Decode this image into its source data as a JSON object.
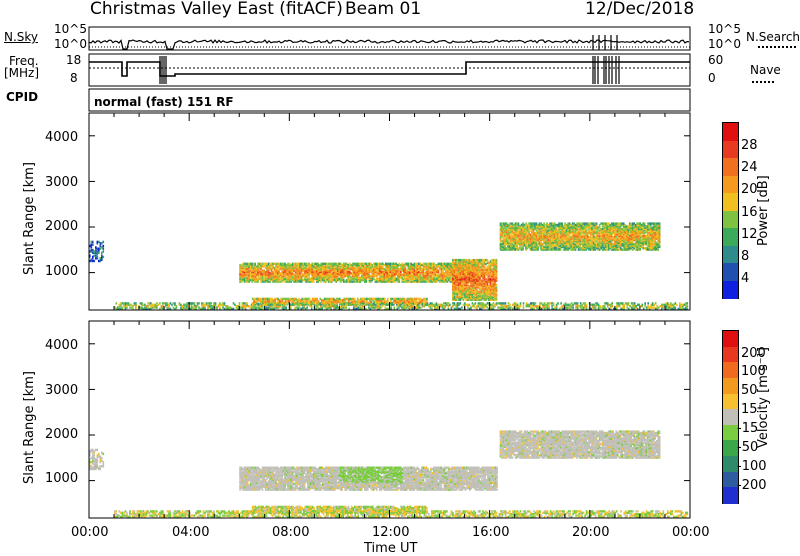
{
  "title": {
    "station": "Christmas Valley East (fitACF)",
    "beam": "Beam 01",
    "date": "12/Dec/2018"
  },
  "status_panel": {
    "nsky_label": "N.Sky",
    "nsky_ticks": [
      "10^5",
      "10^0"
    ],
    "nsearch_label": "N.Search",
    "nsearch_ticks": [
      "10^5",
      "10^0"
    ],
    "freq_label_1": "Freq.",
    "freq_label_2": "[MHz]",
    "freq_ticks": [
      "18",
      "8"
    ],
    "nave_label": "Nave",
    "nave_ticks": [
      "60",
      "0"
    ],
    "cpid_label": "CPID",
    "cpid_value": "normal (fast) 151 RF"
  },
  "chart_data": [
    {
      "type": "heatmap",
      "name": "power",
      "ylabel": "Slant Range [km]",
      "ylim": [
        180,
        4500
      ],
      "yticks": [
        "1000",
        "2000",
        "3000",
        "4000"
      ],
      "xlim": [
        "00:00",
        "24:00"
      ],
      "colorbar_label": "Power [dB]",
      "colorbar_ticks": [
        "4",
        "8",
        "12",
        "16",
        "20",
        "24",
        "28"
      ],
      "colorbar_colors": [
        "#1020e0",
        "#2050b0",
        "#2e8c8c",
        "#3caa5a",
        "#7fc241",
        "#f0c020",
        "#f49a20",
        "#f07020",
        "#e83a20",
        "#e01010"
      ],
      "regions": [
        {
          "t": [
            1.0,
            23.9
          ],
          "r": [
            200,
            330
          ],
          "level": 0.55,
          "density": 0.55
        },
        {
          "t": [
            6.0,
            15.5
          ],
          "r": [
            800,
            1200
          ],
          "level": 0.75,
          "density": 0.85
        },
        {
          "t": [
            6.5,
            13.5
          ],
          "r": [
            300,
            450
          ],
          "level": 0.7,
          "density": 0.8
        },
        {
          "t": [
            14.5,
            16.3
          ],
          "r": [
            400,
            1300
          ],
          "level": 0.8,
          "density": 0.85
        },
        {
          "t": [
            16.4,
            22.8
          ],
          "r": [
            1500,
            2100
          ],
          "level": 0.65,
          "density": 0.85
        },
        {
          "t": [
            0.0,
            0.6
          ],
          "r": [
            1250,
            1700
          ],
          "level": 0.2,
          "density": 0.4
        }
      ]
    },
    {
      "type": "heatmap",
      "name": "velocity",
      "xlabel": "Time UT",
      "ylabel": "Slant Range [km]",
      "ylim": [
        180,
        4500
      ],
      "yticks": [
        "1000",
        "2000",
        "3000",
        "4000"
      ],
      "xticks": [
        "00:00",
        "04:00",
        "08:00",
        "12:00",
        "16:00",
        "20:00",
        "00:00"
      ],
      "xlim": [
        "00:00",
        "24:00"
      ],
      "colorbar_label": "Velocity [m s⁻¹]",
      "colorbar_ticks": [
        "200",
        "100",
        "50",
        "15",
        "-15",
        "-50",
        "-100",
        "-200"
      ],
      "colorbar_colors": [
        "#2030d0",
        "#2e5ca0",
        "#2e8a6a",
        "#3aa848",
        "#7acc40",
        "#c0c0b8",
        "#f6c030",
        "#f29a20",
        "#f06a20",
        "#e83820",
        "#e01010"
      ],
      "regions": [
        {
          "t": [
            1.0,
            23.9
          ],
          "r": [
            200,
            330
          ],
          "level": 0.55,
          "density": 0.55
        },
        {
          "t": [
            6.0,
            16.3
          ],
          "r": [
            800,
            1300
          ],
          "level": 0.5,
          "density": 0.85
        },
        {
          "t": [
            6.5,
            13.5
          ],
          "r": [
            300,
            450
          ],
          "level": 0.6,
          "density": 0.8
        },
        {
          "t": [
            16.4,
            22.8
          ],
          "r": [
            1500,
            2100
          ],
          "level": 0.5,
          "density": 0.85
        },
        {
          "t": [
            0.0,
            0.6
          ],
          "r": [
            1250,
            1700
          ],
          "level": 0.5,
          "density": 0.4
        }
      ]
    }
  ]
}
